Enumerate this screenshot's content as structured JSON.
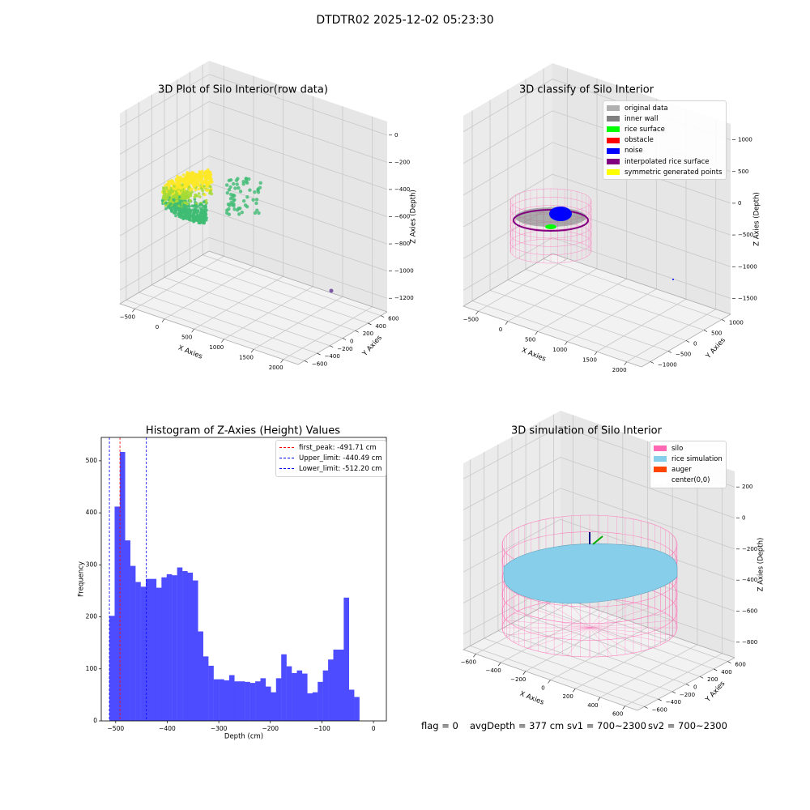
{
  "suptitle": "DTDTR02 2025-12-02 05:23:30",
  "status": {
    "flag": "flag = 0",
    "avg_depth": "avgDepth = 377 cm",
    "sv1": "sv1 = 700~2300",
    "sv2": "sv2 = 700~2300"
  },
  "chart_data": [
    {
      "type": "scatter",
      "title": "3D Plot of Silo Interior(row data)",
      "xlabel": "X Axies",
      "ylabel": "Y Axies",
      "zlabel": "Z Axies (Depth)",
      "x_ticks": [
        -500,
        0,
        500,
        1000,
        1500,
        2000
      ],
      "y_ticks": [
        -600,
        -400,
        -200,
        0,
        200,
        400,
        600
      ],
      "z_ticks": [
        0,
        -200,
        -400,
        -600,
        -800,
        -1000,
        -1200
      ],
      "colors": {
        "low": "#3fbc73",
        "high": "#fde725",
        "outlier": "#7f58a8"
      }
    },
    {
      "type": "scatter",
      "title": "3D classify of Silo Interior",
      "xlabel": "X Axies",
      "ylabel": "Y Axies",
      "zlabel": "Z Axies (Depth)",
      "x_ticks": [
        -500,
        0,
        500,
        1000,
        1500,
        2000
      ],
      "y_ticks": [
        -1000,
        -500,
        0,
        500,
        1000
      ],
      "z_ticks": [
        1000,
        500,
        0,
        -500,
        -1000,
        -1500
      ],
      "legend": [
        {
          "name": "original data",
          "color": "#b0b0b0"
        },
        {
          "name": "inner wall",
          "color": "#808080"
        },
        {
          "name": "rice surface",
          "color": "#00ff00"
        },
        {
          "name": "obstacle",
          "color": "#ff0000"
        },
        {
          "name": "noise",
          "color": "#0000ff"
        },
        {
          "name": "interpolated rice surface",
          "color": "#800080"
        },
        {
          "name": "symmetric generated points",
          "color": "#ffff00"
        }
      ],
      "legend_position": "top-right"
    },
    {
      "type": "bar",
      "title": "Histogram of Z-Axies (Height) Values",
      "xlabel": "Depth (cm)",
      "ylabel": "Frequency",
      "xlim": [
        -528,
        25
      ],
      "ylim": [
        0,
        545
      ],
      "x_ticks": [
        -500,
        -400,
        -300,
        -200,
        -100,
        0
      ],
      "y_ticks": [
        0,
        100,
        200,
        300,
        400,
        500
      ],
      "bar_color": "#4d4dff",
      "bin_start": -512.2,
      "bin_width": 10.1,
      "values": [
        202,
        412,
        517,
        347,
        298,
        267,
        258,
        273,
        273,
        256,
        276,
        282,
        280,
        295,
        288,
        285,
        270,
        172,
        124,
        106,
        80,
        80,
        78,
        88,
        76,
        76,
        75,
        73,
        76,
        82,
        66,
        55,
        82,
        128,
        105,
        92,
        97,
        91,
        53,
        55,
        75,
        97,
        118,
        137,
        137,
        237,
        60,
        46
      ],
      "lines": [
        {
          "label": "first_peak: -491.71 cm",
          "x": -491.71,
          "color": "#ff0000"
        },
        {
          "label": "Upper_limit: -440.49 cm",
          "x": -440.49,
          "color": "#0000ff"
        },
        {
          "label": "Lower_limit: -512.20 cm",
          "x": -512.2,
          "color": "#0000ff"
        }
      ],
      "legend_position": "top-right"
    },
    {
      "type": "scatter",
      "title": "3D simulation of Silo Interior",
      "xlabel": "X Axies",
      "ylabel": "Y Axies",
      "zlabel": "Z Axies (Depth)",
      "x_ticks": [
        -600,
        -400,
        -200,
        0,
        200,
        400,
        600
      ],
      "y_ticks": [
        -600,
        -400,
        -200,
        0,
        200,
        400,
        600
      ],
      "z_ticks": [
        200,
        0,
        -200,
        -400,
        -600,
        -800
      ],
      "legend": [
        {
          "name": "silo",
          "color": "#ff69b4"
        },
        {
          "name": "rice simulation",
          "color": "#87ceeb"
        },
        {
          "name": "auger",
          "color": "#ff4500"
        },
        {
          "name": "center(0,0)",
          "color": "#ffffff"
        }
      ],
      "legend_position": "top-right"
    }
  ]
}
